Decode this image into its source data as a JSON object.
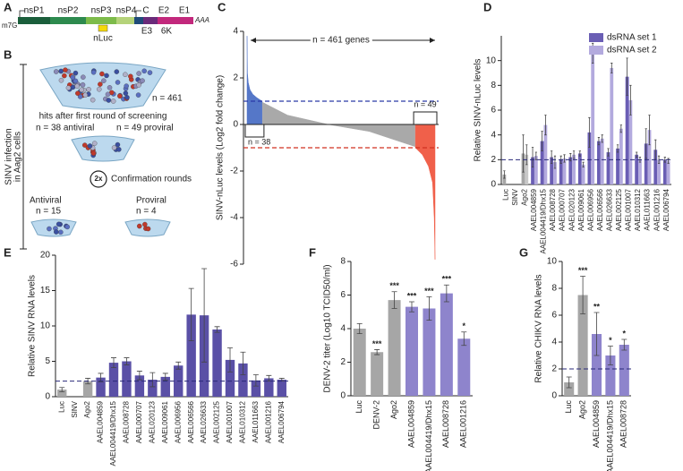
{
  "panel_letters": [
    "A",
    "B",
    "C",
    "D",
    "E",
    "F",
    "G"
  ],
  "genome_diagram": {
    "cap": "m7G",
    "tail": "AAA",
    "genes": [
      "nsP1",
      "nsP2",
      "nsP3",
      "nsP4",
      "C",
      "E2",
      "E1"
    ],
    "lower": [
      "E3",
      "6K"
    ],
    "reporter": "nLuc"
  },
  "screening_diagram": {
    "side_label": [
      "SINV infection",
      "in Aag2 cells"
    ],
    "library": "n = 461",
    "hits_title": "hits after first round of screening",
    "hits_antiviral": "n = 38 antiviral",
    "hits_proviral": "n = 49 proviral",
    "rounds": "2x",
    "rounds_label": "Confirmation rounds",
    "antiviral": "Antiviral",
    "antiviral_n": "n = 15",
    "proviral": "Proviral",
    "proviral_n": "n = 4"
  },
  "chart_data": [
    {
      "type": "area",
      "panel": "C",
      "y_label": "SINV-nLuc levels (Log2 fold change)",
      "xlim": [
        1,
        461
      ],
      "ylim": [
        -6,
        4
      ],
      "yticks": [
        -6,
        -4,
        -2,
        0,
        2,
        4
      ],
      "series": [
        {
          "color": "#5577c8",
          "x": [
            1,
            2,
            4,
            8,
            15,
            25,
            38
          ],
          "values": [
            3.8,
            2.2,
            1.8,
            1.5,
            1.3,
            1.15,
            1.0
          ]
        },
        {
          "color": "#a9a9a9",
          "x": [
            39,
            100,
            200,
            300,
            412
          ],
          "values": [
            0.95,
            0.4,
            0,
            -0.3,
            -0.95
          ]
        },
        {
          "color": "#f0604a",
          "x": [
            413,
            430,
            445,
            455,
            459,
            461
          ],
          "values": [
            -1.0,
            -1.3,
            -1.8,
            -2.5,
            -4,
            -5.8
          ]
        }
      ],
      "hlines": [
        {
          "value": 1,
          "color": "#2a3aa8"
        },
        {
          "value": -1,
          "color": "#d03020"
        }
      ],
      "annotations": {
        "total": "n = 461 genes",
        "antiviral": "n = 38",
        "proviral": "n = 49"
      }
    },
    {
      "type": "bar",
      "panel": "D",
      "y_label": "Relative SINV-nLuc levels",
      "categories": [
        "Luc",
        "SINV",
        "Ago2",
        "AAEL004859",
        "AAEL004419/Dhx15",
        "AAEL008728",
        "AAEL000707",
        "AAEL020123",
        "AAEL009061",
        "AAEL006956",
        "AAEL006566",
        "AAEL026633",
        "AAEL002125",
        "AAEL001007",
        "AAEL010312",
        "AAEL011663",
        "AAEL001216",
        "AAEL006794"
      ],
      "ylim": [
        0,
        12
      ],
      "yticks": [
        0,
        2,
        4,
        6,
        8,
        10
      ],
      "reference_line": 2,
      "series": [
        {
          "name": "dsRNA set 1",
          "color": "#6a5eb4",
          "colors": [
            "#a6a6a6",
            "#a6a6a6",
            "#a6a6a6",
            "#6a5eb4",
            "#6a5eb4",
            "#6a5eb4",
            "#6a5eb4",
            "#6a5eb4",
            "#6a5eb4",
            "#6a5eb4",
            "#6a5eb4",
            "#6a5eb4",
            "#6a5eb4",
            "#6a5eb4",
            "#6a5eb4",
            "#6a5eb4",
            "#6a5eb4",
            "#6a5eb4"
          ],
          "values": [
            0.8,
            null,
            2.5,
            2.2,
            3.5,
            2.2,
            2.0,
            2.2,
            2.5,
            4.2,
            3.5,
            2.6,
            2.9,
            8.7,
            2.4,
            3.3,
            2.8,
            2.0
          ],
          "errors": [
            0.3,
            null,
            1.5,
            0.8,
            0.8,
            0.5,
            0.3,
            0.3,
            0.2,
            1.2,
            0.3,
            0.3,
            0.3,
            1.5,
            0.2,
            1.2,
            0.8,
            0.2
          ]
        },
        {
          "name": "dsRNA set 2",
          "color": "#b3aade",
          "colors": [
            "#c8c8c8",
            "#c8c8c8",
            "#c8c8c8",
            "#b3aade",
            "#b3aade",
            "#b3aade",
            "#b3aade",
            "#b3aade",
            "#b3aade",
            "#b3aade",
            "#b3aade",
            "#b3aade",
            "#b3aade",
            "#b3aade",
            "#b3aade",
            "#b3aade",
            "#b3aade",
            "#b3aade"
          ],
          "values": [
            null,
            null,
            2.4,
            2.3,
            4.8,
            1.8,
            2.1,
            2.4,
            1.6,
            10.6,
            3.7,
            9.4,
            4.5,
            6.8,
            2.0,
            4.4,
            2.0,
            1.9
          ],
          "errors": [
            null,
            null,
            0.8,
            0.3,
            0.8,
            0.5,
            0.3,
            0.3,
            0.2,
            0.8,
            0.3,
            0.4,
            0.3,
            1.2,
            0.2,
            1.2,
            0.3,
            0.2
          ]
        }
      ]
    },
    {
      "type": "bar",
      "panel": "E",
      "y_label": "Relative SINV RNA levels",
      "categories": [
        "Luc",
        "SINV",
        "Ago2",
        "AAEL004859",
        "AAEL004419/Dhx15",
        "AAEL008728",
        "AAEL000707",
        "AAEL020123",
        "AAEL009061",
        "AAEL006956",
        "AAEL006566",
        "AAEL026633",
        "AAEL002125",
        "AAEL001007",
        "AAEL010312",
        "AAEL011663",
        "AAEL001216",
        "AAEL006794"
      ],
      "ylim": [
        0,
        20
      ],
      "yticks": [
        0,
        5,
        10,
        15,
        20
      ],
      "reference_line": 2.2,
      "series": [
        {
          "color": "#5a50a6",
          "colors": [
            "#a6a6a6",
            "#a6a6a6",
            "#a6a6a6",
            "#5a50a6",
            "#5a50a6",
            "#5a50a6",
            "#5a50a6",
            "#5a50a6",
            "#5a50a6",
            "#5a50a6",
            "#5a50a6",
            "#5a50a6",
            "#5a50a6",
            "#5a50a6",
            "#5a50a6",
            "#5a50a6",
            "#5a50a6",
            "#5a50a6"
          ],
          "values": [
            1.0,
            null,
            2.2,
            2.7,
            4.8,
            5.0,
            3.0,
            2.4,
            2.8,
            4.4,
            11.6,
            11.5,
            9.5,
            5.2,
            4.7,
            2.3,
            2.6,
            2.4
          ],
          "errors": [
            0.3,
            null,
            0.4,
            0.6,
            0.7,
            0.5,
            0.6,
            1.0,
            0.5,
            0.5,
            3.7,
            6.6,
            0.4,
            1.7,
            1.6,
            0.8,
            0.4,
            0.2
          ]
        }
      ]
    },
    {
      "type": "bar",
      "panel": "F",
      "y_label": "DENV-2 titer (Log10 TCID50/ml)",
      "categories": [
        "Luc",
        "DENV-2",
        "Ago2",
        "AAEL004859",
        "AAEL004419/Dhx15",
        "AAEL008728",
        "AAEL001216"
      ],
      "ylim": [
        0,
        8
      ],
      "yticks": [
        0,
        2,
        4,
        6,
        8
      ],
      "significance": [
        null,
        "***",
        "***",
        "***",
        "***",
        "***",
        "*"
      ],
      "series": [
        {
          "color": "#8e84cc",
          "colors": [
            "#a6a6a6",
            "#a6a6a6",
            "#a6a6a6",
            "#8e84cc",
            "#8e84cc",
            "#8e84cc",
            "#8e84cc"
          ],
          "values": [
            4.0,
            2.6,
            5.7,
            5.3,
            5.2,
            6.1,
            3.4
          ],
          "errors": [
            0.3,
            0.15,
            0.5,
            0.3,
            0.7,
            0.5,
            0.4
          ]
        }
      ]
    },
    {
      "type": "bar",
      "panel": "G",
      "y_label": "Relative CHIKV RNA levels",
      "categories": [
        "Luc",
        "Ago2",
        "AAEL004859",
        "AAEL004419/Dhx15",
        "AAEL008728"
      ],
      "ylim": [
        0,
        10
      ],
      "yticks": [
        0,
        2,
        4,
        6,
        8,
        10
      ],
      "reference_line": 2,
      "significance": [
        null,
        "***",
        "**",
        "*",
        "*"
      ],
      "series": [
        {
          "color": "#8e84cc",
          "colors": [
            "#a6a6a6",
            "#a6a6a6",
            "#8e84cc",
            "#8e84cc",
            "#8e84cc"
          ],
          "values": [
            1.0,
            7.5,
            4.6,
            3.0,
            3.8
          ],
          "errors": [
            0.4,
            1.4,
            1.6,
            0.7,
            0.4
          ]
        }
      ]
    }
  ]
}
